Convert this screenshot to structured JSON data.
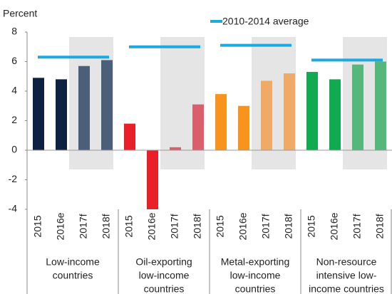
{
  "chart_data": {
    "type": "bar",
    "ylabel": "Percent",
    "legend": "2010-2014 average",
    "average_color": "#1ba9e0",
    "ylim": [
      -4,
      8
    ],
    "yticks": [
      8,
      6,
      4,
      2,
      0,
      -2,
      -4
    ],
    "groups": [
      {
        "label": [
          "Low-income",
          "countries"
        ],
        "categories": [
          "2015",
          "2016e",
          "2017f",
          "2018f"
        ],
        "values": [
          4.9,
          4.8,
          5.7,
          6.1
        ],
        "colors": [
          "#0d2240",
          "#0d2240",
          "#4b5f7a",
          "#4b5f7a"
        ],
        "average": 6.3
      },
      {
        "label": [
          "Oil-exporting",
          "low-income",
          "countries"
        ],
        "categories": [
          "2015",
          "2016e",
          "2017f",
          "2018f"
        ],
        "values": [
          1.8,
          -4.0,
          0.2,
          3.1
        ],
        "colors": [
          "#e8202a",
          "#e8202a",
          "#d9606a",
          "#d9606a"
        ],
        "average": 7.0
      },
      {
        "label": [
          "Metal-exporting",
          "low-income",
          "countries"
        ],
        "categories": [
          "2015",
          "2016e",
          "2017f",
          "2018f"
        ],
        "values": [
          3.8,
          3.0,
          4.7,
          5.2
        ],
        "colors": [
          "#f7941d",
          "#f7941d",
          "#eeaa66",
          "#eeaa66"
        ],
        "average": 7.1
      },
      {
        "label": [
          "Non-resource",
          "intensive low-",
          "income countries"
        ],
        "categories": [
          "2015",
          "2016e",
          "2017f",
          "2018f"
        ],
        "values": [
          5.3,
          4.8,
          5.8,
          6.0
        ],
        "colors": [
          "#12aa50",
          "#12aa50",
          "#55b87a",
          "#55b87a"
        ],
        "average": 6.1
      }
    ]
  }
}
